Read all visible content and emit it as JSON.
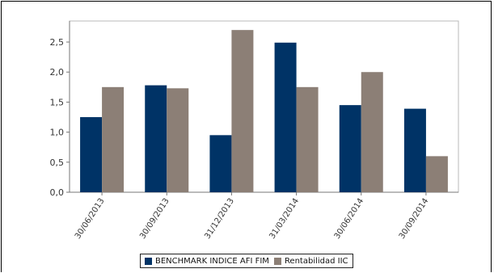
{
  "chart_data": {
    "type": "bar",
    "categories": [
      "30/06/2013",
      "30/09/2013",
      "31/12/2013",
      "31/03/2014",
      "30/06/2014",
      "30/09/2014"
    ],
    "series": [
      {
        "name": "BENCHMARK INDICE AFI FIM",
        "color": "#003366",
        "values": [
          1.25,
          1.78,
          0.95,
          2.49,
          1.45,
          1.39
        ]
      },
      {
        "name": "Rentabilidad IIC",
        "color": "#8c7f76",
        "values": [
          1.75,
          1.73,
          2.7,
          1.75,
          2.0,
          0.6
        ]
      }
    ],
    "yticks": [
      "0,0",
      "0,5",
      "1,0",
      "1,5",
      "2,0",
      "2,5"
    ],
    "ytick_values": [
      0,
      0.5,
      1.0,
      1.5,
      2.0,
      2.5
    ],
    "ylim": [
      0,
      2.85
    ],
    "title": "",
    "xlabel": "",
    "ylabel": "",
    "grid": false,
    "legend_position": "bottom-center"
  }
}
